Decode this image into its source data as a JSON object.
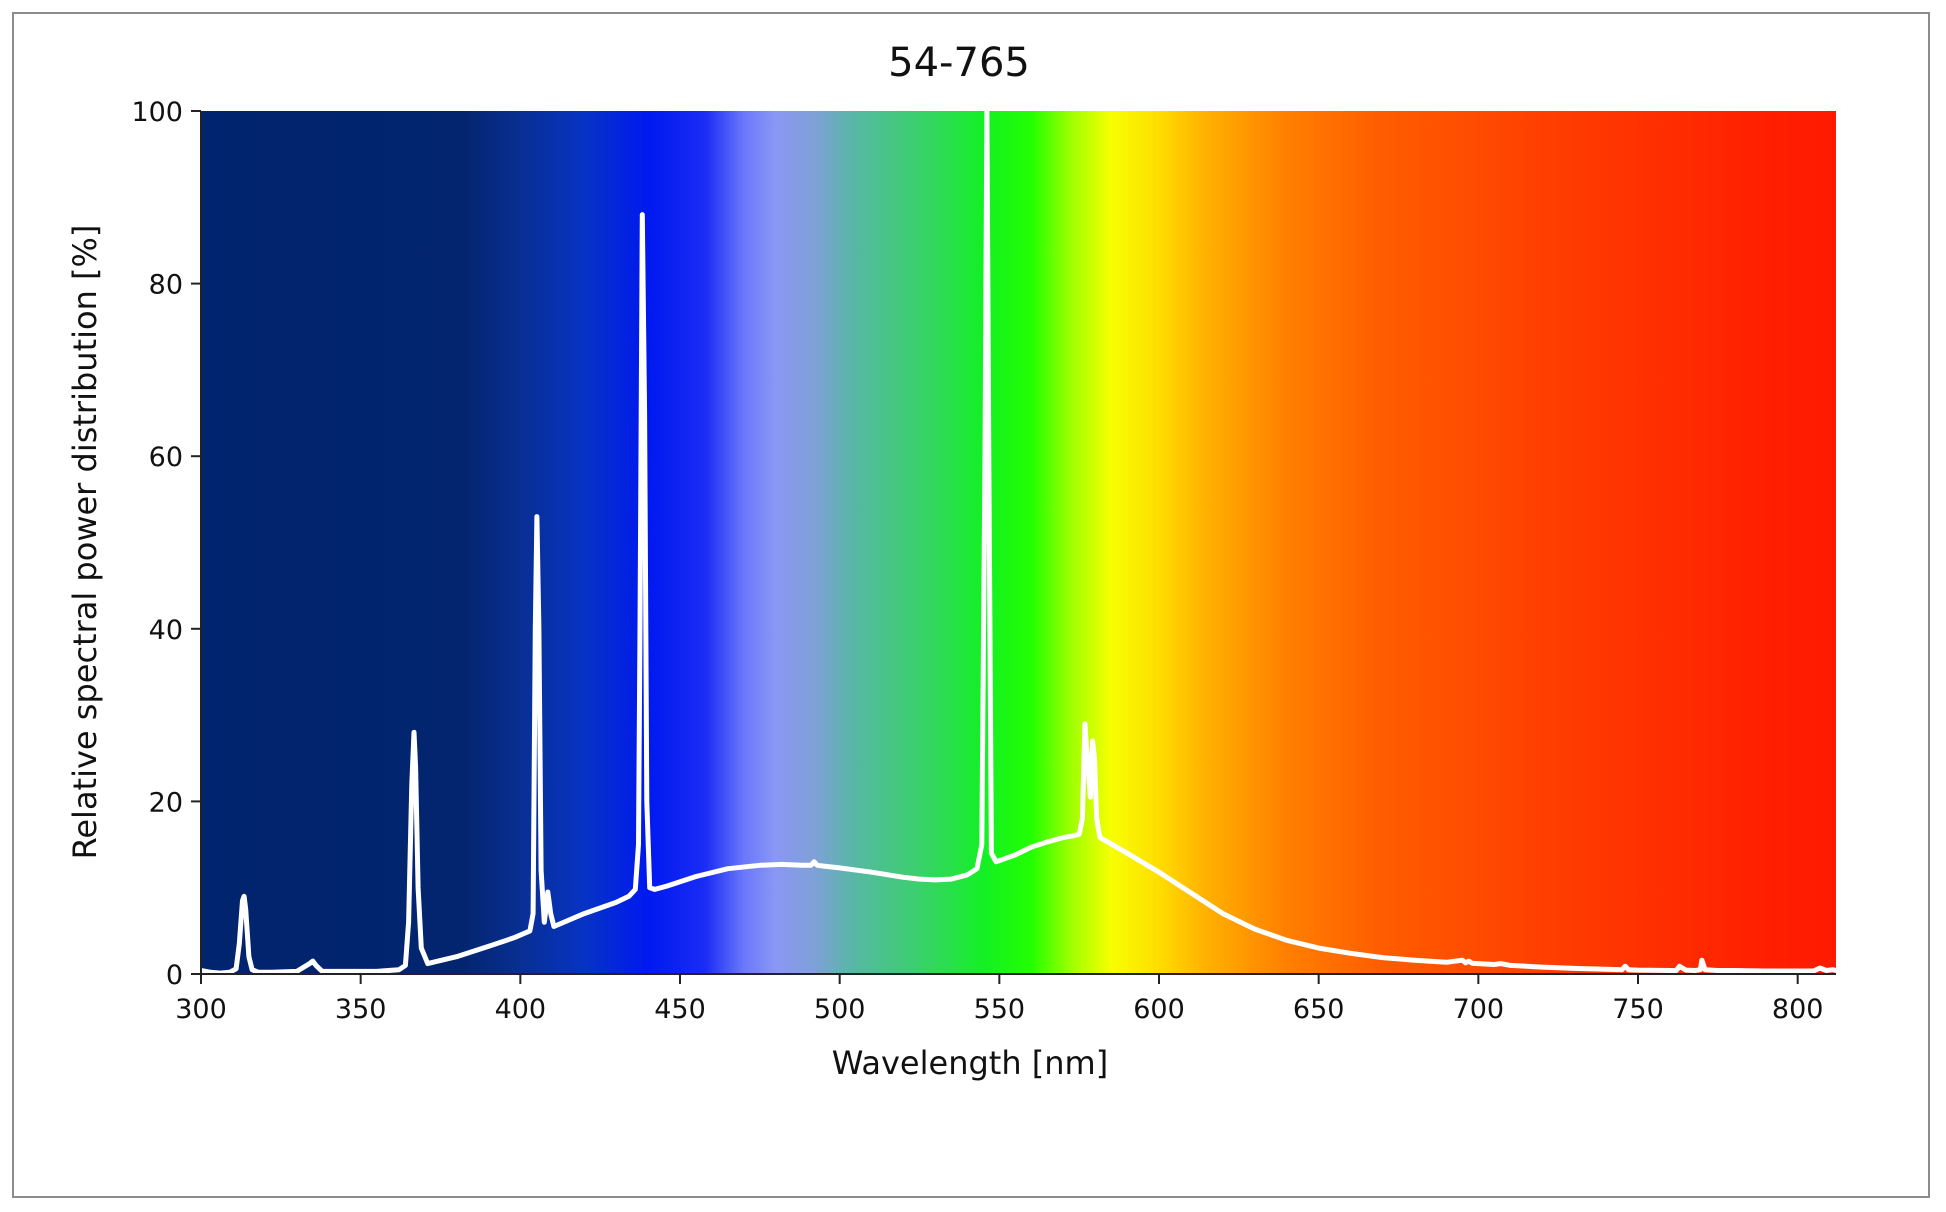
{
  "chart_data": {
    "type": "line",
    "title": "54-765",
    "xlabel": "Wavelength [nm]",
    "ylabel": "Relative spectral power distribution [%]",
    "xlim": [
      300,
      812
    ],
    "ylim": [
      0,
      100
    ],
    "x_ticks": [
      300,
      350,
      400,
      450,
      500,
      550,
      600,
      650,
      700,
      750,
      800
    ],
    "y_ticks": [
      0,
      20,
      40,
      60,
      80,
      100
    ],
    "grid": false,
    "legend": "none",
    "background": "visible-spectrum gradient",
    "line_color": "#ffffff",
    "spectrum_colors": [
      {
        "nm": 300,
        "color": "#01246e"
      },
      {
        "nm": 382,
        "color": "#03256f"
      },
      {
        "nm": 400,
        "color": "#082f92"
      },
      {
        "nm": 420,
        "color": "#0633c4"
      },
      {
        "nm": 440,
        "color": "#0019f0"
      },
      {
        "nm": 458,
        "color": "#1a2cf5"
      },
      {
        "nm": 470,
        "color": "#6a78fa"
      },
      {
        "nm": 480,
        "color": "#8a97f4"
      },
      {
        "nm": 492,
        "color": "#7fa0d8"
      },
      {
        "nm": 505,
        "color": "#56b8a2"
      },
      {
        "nm": 525,
        "color": "#3ad06c"
      },
      {
        "nm": 545,
        "color": "#14f025"
      },
      {
        "nm": 560,
        "color": "#22ff00"
      },
      {
        "nm": 572,
        "color": "#9bff00"
      },
      {
        "nm": 585,
        "color": "#f7ff00"
      },
      {
        "nm": 600,
        "color": "#ffdd00"
      },
      {
        "nm": 615,
        "color": "#ffb000"
      },
      {
        "nm": 640,
        "color": "#ff7f00"
      },
      {
        "nm": 670,
        "color": "#ff5c00"
      },
      {
        "nm": 720,
        "color": "#ff3f00"
      },
      {
        "nm": 790,
        "color": "#ff1f00"
      },
      {
        "nm": 812,
        "color": "#ff1a00"
      }
    ],
    "series": [
      {
        "x": [
          300,
          303,
          306,
          309,
          311,
          312,
          313,
          313.5,
          314,
          315,
          316,
          318,
          322,
          330,
          334,
          335,
          336,
          338,
          345,
          355,
          362,
          364,
          365,
          366,
          366.7,
          367.2,
          368,
          369,
          371,
          380,
          390,
          398,
          403,
          404,
          404.7,
          405.2,
          405.8,
          406.5,
          407.5,
          408,
          408.6,
          409.5,
          410.5,
          420,
          430,
          434,
          436,
          437,
          437.5,
          438.2,
          438.9,
          439.6,
          440.5,
          442,
          446,
          455,
          465,
          475,
          482,
          488,
          490,
          491,
          492,
          493,
          495,
          500,
          510,
          520,
          525,
          530,
          535,
          540,
          543,
          544.5,
          545.5,
          546.1,
          546.7,
          547.5,
          549,
          555,
          560,
          565,
          570,
          573,
          575,
          576,
          576.8,
          577.5,
          578.5,
          579.2,
          579.8,
          580.5,
          581.5,
          583,
          590,
          600,
          610,
          620,
          630,
          640,
          650,
          660,
          670,
          680,
          690,
          695,
          696,
          697,
          698,
          700,
          705,
          707,
          710,
          720,
          730,
          740,
          745,
          746,
          747,
          750,
          760,
          762,
          763,
          765,
          768,
          769.5,
          770,
          771,
          775,
          780,
          790,
          800,
          805,
          807,
          809,
          811,
          812
        ],
        "y": [
          0.4,
          0.2,
          0.1,
          0.2,
          0.6,
          3.5,
          8.5,
          9.0,
          7.5,
          2.0,
          0.5,
          0.2,
          0.2,
          0.3,
          1.2,
          1.5,
          1.0,
          0.3,
          0.3,
          0.3,
          0.5,
          1.0,
          6.0,
          22.0,
          28.0,
          24.0,
          10.0,
          3.0,
          1.2,
          2.0,
          3.2,
          4.2,
          5.0,
          7.0,
          40.0,
          53.0,
          40.0,
          12.0,
          6.0,
          7.5,
          9.5,
          7.0,
          5.5,
          7.0,
          8.3,
          9.0,
          9.8,
          15.0,
          42.0,
          88.0,
          65.0,
          20.0,
          10.0,
          9.8,
          10.2,
          11.3,
          12.2,
          12.6,
          12.7,
          12.6,
          12.6,
          12.6,
          13.0,
          12.6,
          12.5,
          12.3,
          11.8,
          11.2,
          11.0,
          10.9,
          11.0,
          11.5,
          12.2,
          15.0,
          60.0,
          100.0,
          60.0,
          14.0,
          13.0,
          13.8,
          14.7,
          15.3,
          15.8,
          16.0,
          16.2,
          18.0,
          29.0,
          25.0,
          20.5,
          27.0,
          25.0,
          18.0,
          15.8,
          15.5,
          14.0,
          11.8,
          9.4,
          7.0,
          5.2,
          3.9,
          3.0,
          2.4,
          1.9,
          1.6,
          1.35,
          1.6,
          1.3,
          1.5,
          1.25,
          1.2,
          1.1,
          1.2,
          1.0,
          0.8,
          0.65,
          0.55,
          0.5,
          0.9,
          0.5,
          0.45,
          0.4,
          0.4,
          0.9,
          0.45,
          0.4,
          0.5,
          1.6,
          0.5,
          0.4,
          0.4,
          0.35,
          0.35,
          0.35,
          0.7,
          0.4,
          0.5,
          0.4
        ]
      }
    ]
  }
}
